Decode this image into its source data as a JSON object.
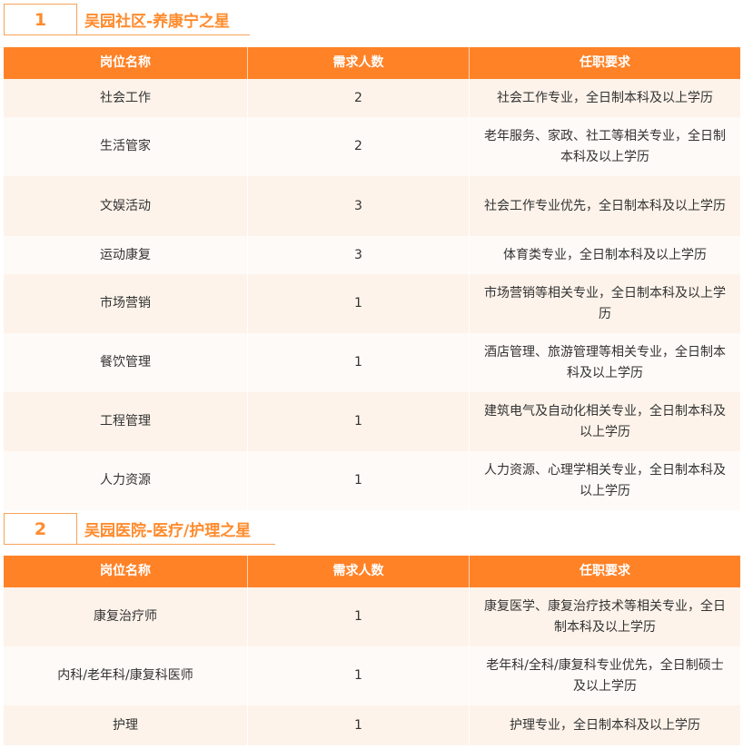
{
  "columns": [
    "岗位名称",
    "需求人数",
    "任职要求"
  ],
  "colors": {
    "accent": "#ff8227",
    "row_alt_1": "#fdf3ea",
    "row_alt_2": "#fefaf7"
  },
  "sections": [
    {
      "number": "1",
      "title": "吴园社区-养康宁之星",
      "rows": [
        {
          "position": "社会工作",
          "count": "2",
          "requirement": "社会工作专业，全日制本科及以上学历"
        },
        {
          "position": "生活管家",
          "count": "2",
          "requirement": "老年服务、家政、社工等相关专业，全日制本科及以上学历"
        },
        {
          "position": "文娱活动",
          "count": "3",
          "requirement": "社会工作专业优先，全日制本科及以上学历"
        },
        {
          "position": "运动康复",
          "count": "3",
          "requirement": "体育类专业，全日制本科及以上学历"
        },
        {
          "position": "市场营销",
          "count": "1",
          "requirement": "市场营销等相关专业，全日制本科及以上学历"
        },
        {
          "position": "餐饮管理",
          "count": "1",
          "requirement": "酒店管理、旅游管理等相关专业，全日制本科及以上学历"
        },
        {
          "position": "工程管理",
          "count": "1",
          "requirement": "建筑电气及自动化相关专业，全日制本科及以上学历"
        },
        {
          "position": "人力资源",
          "count": "1",
          "requirement": "人力资源、心理学相关专业，全日制本科及以上学历"
        }
      ]
    },
    {
      "number": "2",
      "title": "吴园医院-医疗/护理之星",
      "rows": [
        {
          "position": "康复治疗师",
          "count": "1",
          "requirement": "康复医学、康复治疗技术等相关专业，全日制本科及以上学历"
        },
        {
          "position": "内科/老年科/康复科医师",
          "count": "1",
          "requirement": "老年科/全科/康复科专业优先，全日制硕士及以上学历"
        },
        {
          "position": "护理",
          "count": "1",
          "requirement": "护理专业，全日制本科及以上学历"
        }
      ]
    }
  ]
}
